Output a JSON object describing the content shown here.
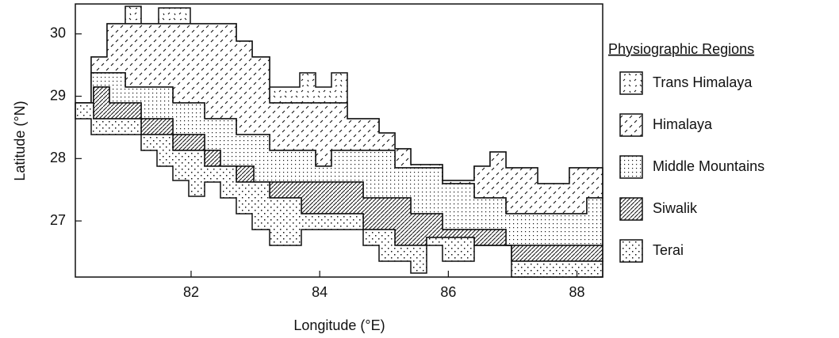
{
  "chart_data": {
    "type": "map",
    "x_label": "Longitude (°E)",
    "y_label": "Latitude (°N)",
    "xlim": [
      80.2,
      88.4
    ],
    "ylim": [
      26.1,
      30.48
    ],
    "xticks": [
      82,
      84,
      86,
      88
    ],
    "yticks": [
      27,
      28,
      29,
      30
    ],
    "legend": {
      "title": "Physiographic Regions",
      "items": [
        "Trans Himalaya",
        "Himalaya",
        "Middle Mountains",
        "Siwalik",
        "Terai"
      ]
    }
  }
}
